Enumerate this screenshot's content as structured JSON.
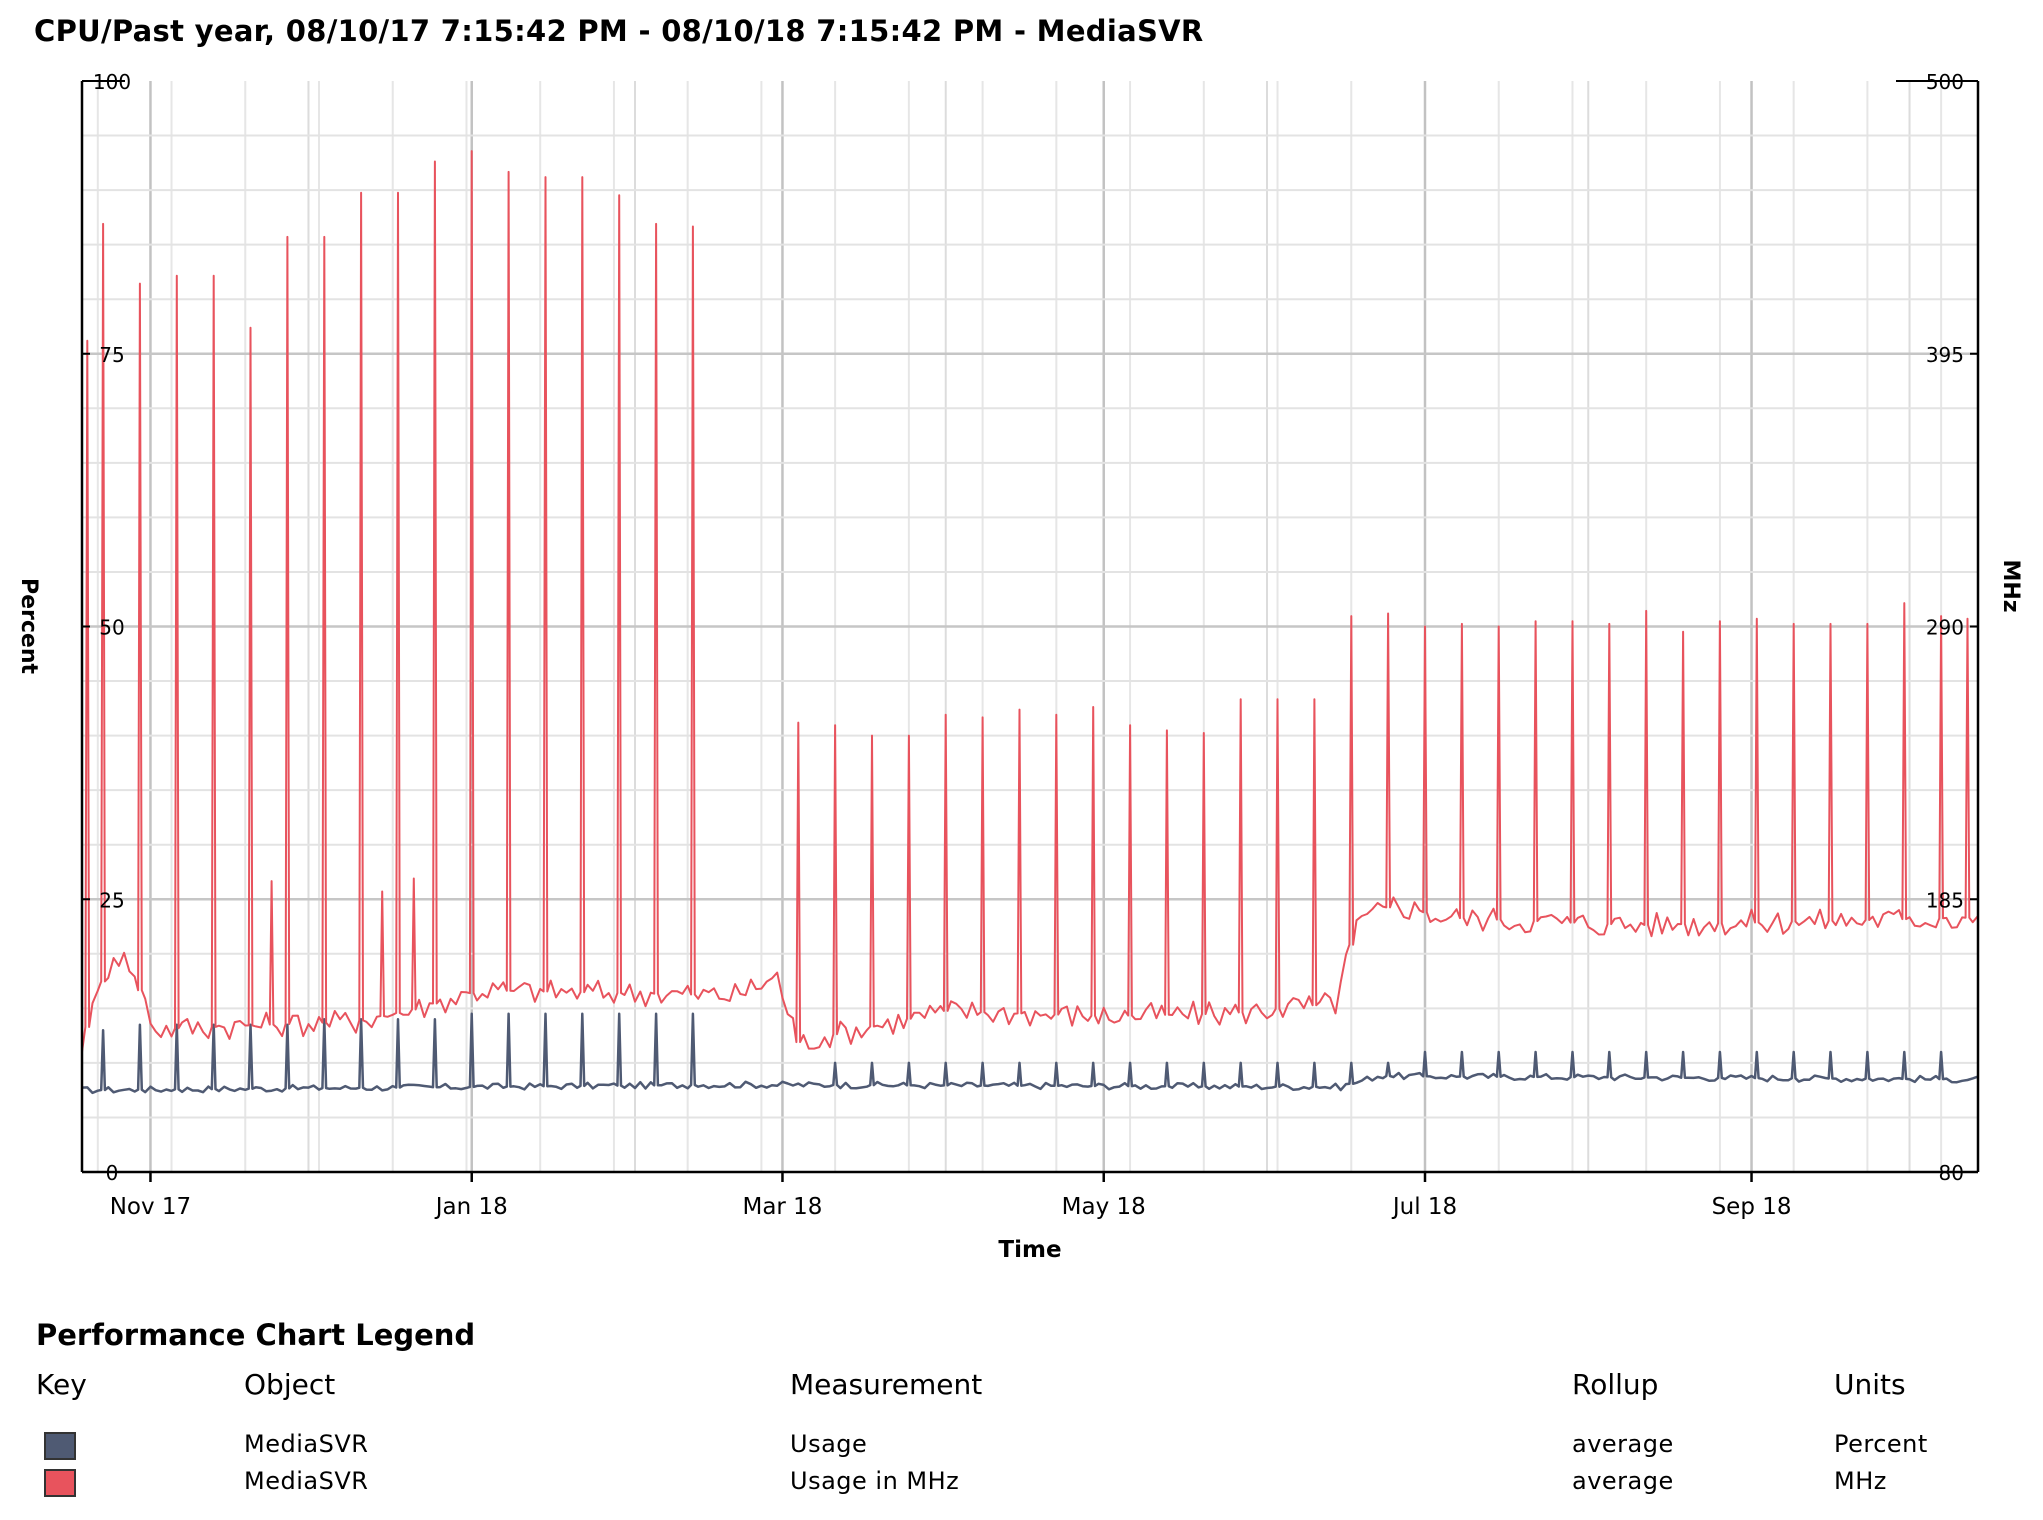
{
  "chart_data": {
    "type": "line",
    "title": "CPU/Past year, 08/10/17 7:15:42 PM - 08/10/18 7:15:42 PM - MediaSVR",
    "xlabel": "Time",
    "ylabel_left": "Percent",
    "ylabel_right": "MHz",
    "xlim": [
      "2017-10-19",
      "2018-10-14"
    ],
    "x_ticks": [
      {
        "date": "2017-11-01",
        "label": "Nov 17"
      },
      {
        "date": "2018-01-01",
        "label": "Jan 18"
      },
      {
        "date": "2018-03-01",
        "label": "Mar 18"
      },
      {
        "date": "2018-05-01",
        "label": "May 18"
      },
      {
        "date": "2018-07-01",
        "label": "Jul 18"
      },
      {
        "date": "2018-09-01",
        "label": "Sep 18"
      }
    ],
    "ylim_left": [
      0,
      100
    ],
    "y_ticks_left": [
      "0",
      "25",
      "50",
      "75",
      "100"
    ],
    "ylim_right": [
      80,
      500
    ],
    "y_ticks_right": [
      "80",
      "185",
      "290",
      "395",
      "500"
    ],
    "grid": true,
    "series": [
      {
        "name": "Usage",
        "axis": "left",
        "color": "#4f5a73",
        "peak_dates": [
          "2017-10-23",
          "2017-10-30",
          "2017-11-06",
          "2017-11-13",
          "2017-11-20",
          "2017-11-27",
          "2017-12-04",
          "2017-12-11",
          "2017-12-18",
          "2017-12-25",
          "2018-01-01",
          "2018-01-08",
          "2018-01-15",
          "2018-01-22",
          "2018-01-29",
          "2018-02-05",
          "2018-02-12",
          "2018-03-11",
          "2018-03-18",
          "2018-03-25",
          "2018-04-01",
          "2018-04-08",
          "2018-04-15",
          "2018-04-22",
          "2018-04-29",
          "2018-05-06",
          "2018-05-13",
          "2018-05-20",
          "2018-05-27",
          "2018-06-03",
          "2018-06-10",
          "2018-06-17",
          "2018-06-24",
          "2018-07-01",
          "2018-07-08",
          "2018-07-15",
          "2018-07-22",
          "2018-07-29",
          "2018-08-05",
          "2018-08-12",
          "2018-08-19",
          "2018-08-26",
          "2018-09-02",
          "2018-09-09",
          "2018-09-16",
          "2018-09-23",
          "2018-09-30",
          "2018-10-07"
        ],
        "peak_values": [
          13,
          13.5,
          13.5,
          13.5,
          13.5,
          13.5,
          14,
          14,
          14,
          14,
          14.5,
          14.5,
          14.5,
          14.5,
          14.5,
          14.5,
          14.5,
          10,
          10,
          10,
          10,
          10,
          10,
          10,
          10,
          10,
          10,
          10,
          10,
          10,
          10,
          10,
          10,
          11,
          11,
          11,
          11,
          11,
          11,
          11,
          11,
          11,
          11,
          11,
          11,
          11,
          11,
          11
        ],
        "baseline": [
          {
            "x": "2017-10-19",
            "y": 7.5
          },
          {
            "x": "2018-02-18",
            "y": 8
          },
          {
            "x": "2018-02-25",
            "y": 8
          },
          {
            "x": "2018-06-15",
            "y": 7.8
          },
          {
            "x": "2018-06-22",
            "y": 8.8
          },
          {
            "x": "2018-10-14",
            "y": 8.5
          }
        ]
      },
      {
        "name": "Usage in MHz",
        "axis": "right",
        "color": "#e8535d",
        "peak_dates": [
          "2017-10-20",
          "2017-10-23",
          "2017-10-30",
          "2017-11-06",
          "2017-11-13",
          "2017-11-20",
          "2017-11-27",
          "2017-12-04",
          "2017-12-11",
          "2017-12-18",
          "2017-12-25",
          "2018-01-01",
          "2018-01-08",
          "2018-01-15",
          "2018-01-22",
          "2018-01-29",
          "2018-02-05",
          "2018-02-12",
          "2018-03-04",
          "2018-03-11",
          "2018-03-18",
          "2018-03-25",
          "2018-04-01",
          "2018-04-08",
          "2018-04-15",
          "2018-04-22",
          "2018-04-29",
          "2018-05-06",
          "2018-05-13",
          "2018-05-20",
          "2018-05-27",
          "2018-06-03",
          "2018-06-10",
          "2018-06-17",
          "2018-06-24",
          "2018-07-01",
          "2018-07-08",
          "2018-07-15",
          "2018-07-22",
          "2018-07-29",
          "2018-08-05",
          "2018-08-12",
          "2018-08-19",
          "2018-08-26",
          "2018-09-02",
          "2018-09-09",
          "2018-09-16",
          "2018-09-23",
          "2018-09-30",
          "2018-10-07",
          "2018-10-12"
        ],
        "peak_values": [
          400,
          445,
          422,
          425,
          425,
          405,
          440,
          440,
          457,
          457,
          469,
          473,
          465,
          463,
          463,
          456,
          445,
          444,
          253,
          252,
          248,
          248,
          256,
          255,
          258,
          256,
          259,
          252,
          250,
          249,
          262,
          262,
          262,
          294,
          295,
          290,
          291,
          290,
          292,
          292,
          291,
          296,
          288,
          292,
          293,
          291,
          291,
          291,
          299,
          294,
          293
        ],
        "secondary_peaks": [
          {
            "x": "2017-11-24",
            "y": 192
          },
          {
            "x": "2017-12-15",
            "y": 188
          },
          {
            "x": "2017-12-21",
            "y": 193
          }
        ],
        "baseline": [
          {
            "x": "2017-10-19",
            "y": 130
          },
          {
            "x": "2017-10-25",
            "y": 165
          },
          {
            "x": "2017-10-28",
            "y": 160
          },
          {
            "x": "2017-11-02",
            "y": 135
          },
          {
            "x": "2017-12-10",
            "y": 138
          },
          {
            "x": "2017-12-20",
            "y": 142
          },
          {
            "x": "2018-01-03",
            "y": 150
          },
          {
            "x": "2018-02-20",
            "y": 148
          },
          {
            "x": "2018-02-28",
            "y": 155
          },
          {
            "x": "2018-03-04",
            "y": 130
          },
          {
            "x": "2018-04-01",
            "y": 142
          },
          {
            "x": "2018-05-01",
            "y": 140
          },
          {
            "x": "2018-05-25",
            "y": 141
          },
          {
            "x": "2018-06-14",
            "y": 145
          },
          {
            "x": "2018-06-18",
            "y": 175
          },
          {
            "x": "2018-06-25",
            "y": 183
          },
          {
            "x": "2018-07-05",
            "y": 178
          },
          {
            "x": "2018-08-10",
            "y": 175
          },
          {
            "x": "2018-10-14",
            "y": 178
          }
        ]
      }
    ]
  },
  "legend": {
    "title": "Performance Chart Legend",
    "headers": {
      "key": "Key",
      "object": "Object",
      "measurement": "Measurement",
      "rollup": "Rollup",
      "units": "Units"
    },
    "rows": [
      {
        "color": "#4f5a73",
        "object": "MediaSVR",
        "measurement": "Usage",
        "rollup": "average",
        "units": "Percent"
      },
      {
        "color": "#e8535d",
        "object": "MediaSVR",
        "measurement": "Usage in MHz",
        "rollup": "average",
        "units": "MHz"
      }
    ]
  }
}
